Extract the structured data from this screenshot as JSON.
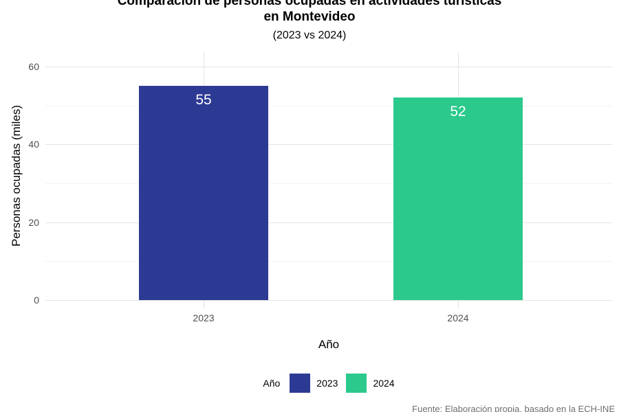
{
  "chart_data": {
    "type": "bar",
    "title_line1": "Comparación de personas ocupadas en actividades turísticas",
    "title_line2": "en Montevideo",
    "subtitle": "(2023 vs 2024)",
    "xlabel": "Año",
    "ylabel": "Personas ocupadas (miles)",
    "categories": [
      "2023",
      "2024"
    ],
    "values": [
      55,
      52
    ],
    "bar_value_labels": [
      "55",
      "52"
    ],
    "bar_colors": [
      "#2D3A94",
      "#2BC98C"
    ],
    "ylim": [
      0,
      60
    ],
    "y_major_ticks": [
      0,
      20,
      40,
      60
    ],
    "y_minor_gridlines": [
      10,
      30,
      50
    ],
    "grid": "on",
    "legend": {
      "position": "bottom",
      "title": "Año",
      "entries": [
        {
          "label": "2023",
          "color": "#2D3A94"
        },
        {
          "label": "2024",
          "color": "#2BC98C"
        }
      ]
    },
    "caption": "Fuente: Elaboración propia, basado en la ECH-INE"
  },
  "colors": {
    "bar_2023": "#2D3A94",
    "bar_2024": "#2BC98C",
    "grid_major": "#E4E4E4",
    "grid_minor": "#F2F2F2",
    "axis_tick": "#E0E0E0",
    "tick_label": "#4D4D4D",
    "caption": "#6E6E6E",
    "bar_value_label": "#FFFFFF"
  }
}
